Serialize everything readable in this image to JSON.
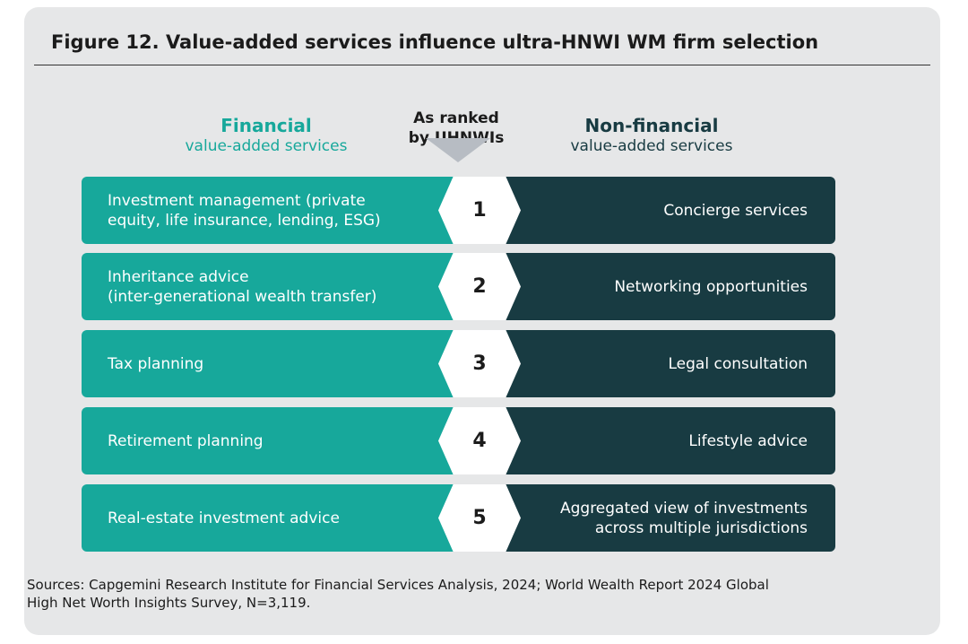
{
  "title": "Figure 12. Value-added services influence ultra-HNWI WM firm selection",
  "headers": {
    "financial_main": "Financial",
    "financial_sub": "value-added services",
    "rank_label": "As ranked\nby UHNWIs",
    "nonfinancial_main": "Non-financial",
    "nonfinancial_sub": "value-added services"
  },
  "rows": [
    {
      "rank": "1",
      "financial": "Investment management (private\nequity, life insurance, lending, ESG)",
      "nonfinancial": "Concierge services"
    },
    {
      "rank": "2",
      "financial": "Inheritance advice\n(inter-generational wealth transfer)",
      "nonfinancial": "Networking opportunities"
    },
    {
      "rank": "3",
      "financial": "Tax planning",
      "nonfinancial": "Legal consultation"
    },
    {
      "rank": "4",
      "financial": "Retirement planning",
      "nonfinancial": "Lifestyle advice"
    },
    {
      "rank": "5",
      "financial": "Real-estate investment advice",
      "nonfinancial": "Aggregated view of investments\nacross multiple jurisdictions"
    }
  ],
  "sources": "Sources: Capgemini Research Institute for Financial Services Analysis, 2024; World Wealth Report 2024 Global\nHigh Net Worth Insights Survey, N=3,119.",
  "colors": {
    "financial": "#17a89b",
    "nonfinancial": "#183b42",
    "rank_badge": "#ffffff",
    "arrow": "#b7bcc3"
  }
}
